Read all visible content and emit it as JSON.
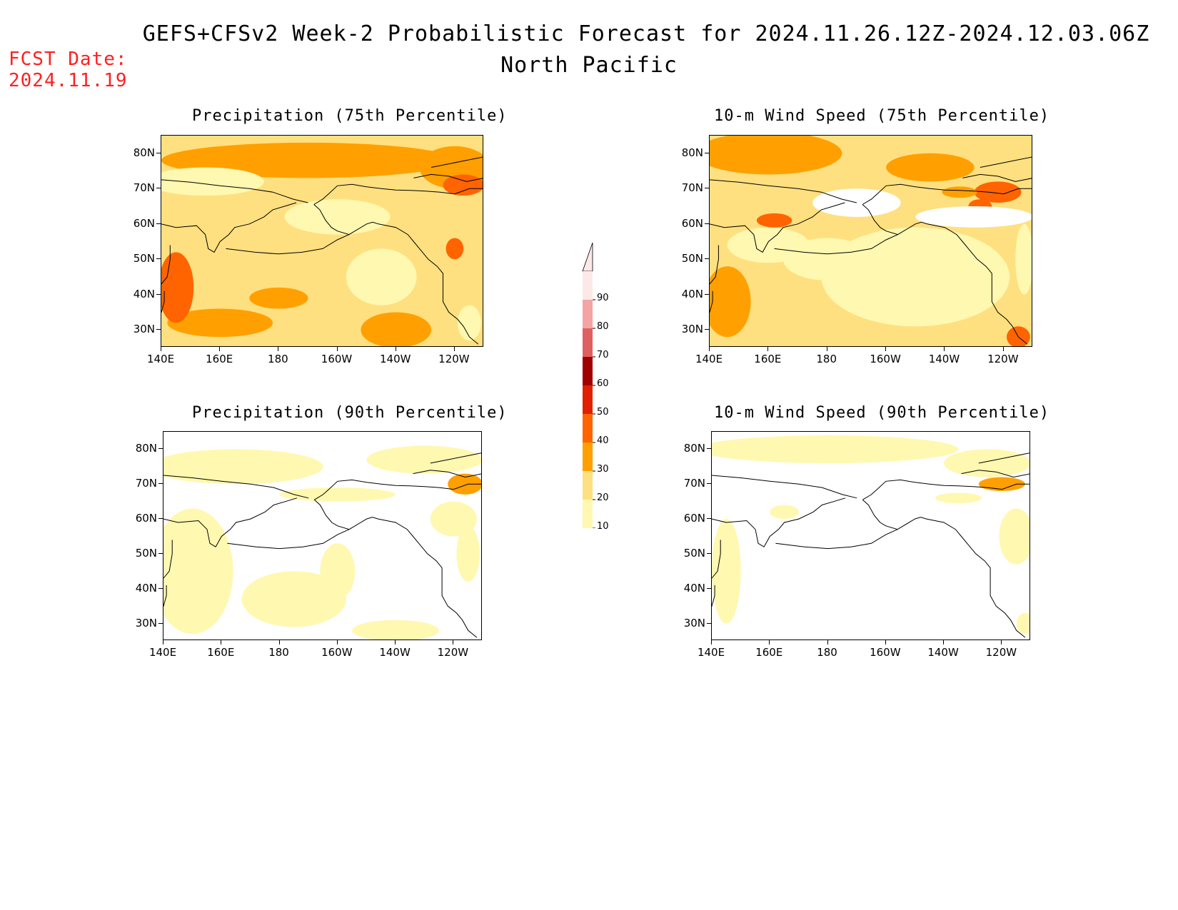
{
  "header": {
    "title_line1": "GEFS+CFSv2 Week-2 Probabilistic Forecast for 2024.11.26.12Z-2024.12.03.06Z",
    "title_line2": "North Pacific",
    "fcst_label": "FCST Date:",
    "fcst_date": "2024.11.19"
  },
  "panels": [
    {
      "id": "p75",
      "title": "Precipitation (75th Percentile)"
    },
    {
      "id": "w75",
      "title": "10-m Wind Speed (75th Percentile)"
    },
    {
      "id": "p90",
      "title": "Precipitation (90th Percentile)"
    },
    {
      "id": "w90",
      "title": "10-m Wind Speed (90th Percentile)"
    }
  ],
  "axes": {
    "lat_labels": [
      "80N",
      "70N",
      "60N",
      "50N",
      "40N",
      "30N"
    ],
    "lon_labels": [
      "140E",
      "160E",
      "180",
      "160W",
      "140W",
      "120W"
    ]
  },
  "colorbar": {
    "labels": [
      "90",
      "80",
      "70",
      "60",
      "50",
      "40",
      "30",
      "20",
      "10"
    ],
    "colors": [
      "#fde8e8",
      "#f4a4a4",
      "#e06060",
      "#a00000",
      "#e02000",
      "#ff6400",
      "#ffa000",
      "#ffe080",
      "#fff8b0"
    ]
  },
  "palette": {
    "c10": "#fff8b0",
    "c20": "#ffe080",
    "c30": "#ffa000",
    "c40": "#ff6400",
    "c50": "#e02000",
    "background": "#ffffff",
    "title_red": "#ff2020"
  }
}
